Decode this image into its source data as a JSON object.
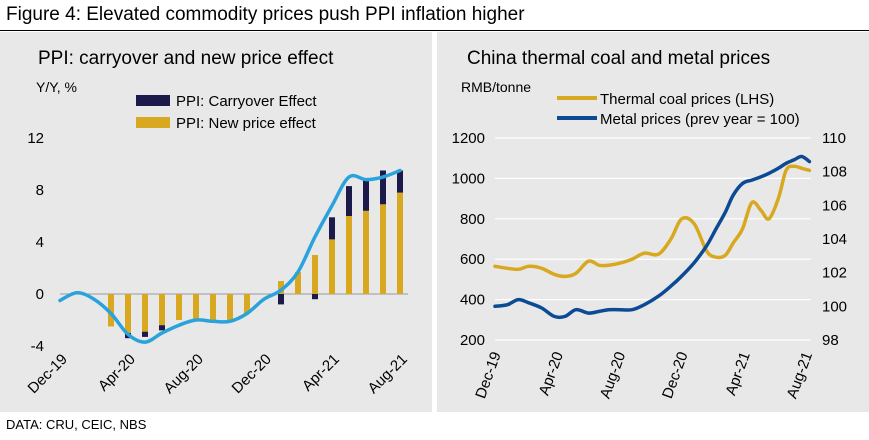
{
  "figure_title": "Figure 4: Elevated commodity prices push PPI inflation higher",
  "source": "DATA: CRU, CEIC, NBS",
  "colors": {
    "panel_bg": "#e8e8e8",
    "carryover": "#1c1a4a",
    "new_price": "#d8a820",
    "ppi_line": "#2aa3dc",
    "coal_line": "#d8a820",
    "metal_line": "#0d4a94"
  },
  "chart_data": [
    {
      "type": "bar",
      "title": "PPI: carryover and new price effect",
      "ylabel": "Y/Y, %",
      "ylim": [
        -4,
        12
      ],
      "yticks": [
        -4,
        0,
        4,
        8,
        12
      ],
      "xtick_labels": [
        "Dec-19",
        "Apr-20",
        "Aug-20",
        "Dec-20",
        "Apr-21",
        "Aug-21"
      ],
      "legend": [
        "PPI: Carryover Effect",
        "PPI: New price effect"
      ],
      "legend_placement": "top",
      "x_months": [
        "Dec-19",
        "Jan-20",
        "Feb-20",
        "Mar-20",
        "Apr-20",
        "May-20",
        "Jun-20",
        "Jul-20",
        "Aug-20",
        "Sep-20",
        "Oct-20",
        "Nov-20",
        "Dec-20",
        "Jan-21",
        "Feb-21",
        "Mar-21",
        "Apr-21",
        "May-21",
        "Jun-21",
        "Jul-21",
        "Aug-21"
      ],
      "series": [
        {
          "name": "PPI: Carryover Effect",
          "kind": "bar",
          "values": [
            0,
            0,
            0,
            0,
            -0.4,
            -0.4,
            -0.4,
            0,
            0,
            0,
            0,
            0,
            0,
            -0.8,
            0,
            -0.4,
            1.7,
            2.3,
            2.5,
            2.6,
            1.7
          ]
        },
        {
          "name": "PPI: New price effect",
          "kind": "bar",
          "values": [
            0,
            0,
            0,
            -2.5,
            -3.0,
            -2.9,
            -2.4,
            -2.0,
            -2.0,
            -2.0,
            -2.0,
            -1.5,
            0,
            1.0,
            1.7,
            3.0,
            4.2,
            6.0,
            6.4,
            6.9,
            7.8
          ]
        },
        {
          "name": "PPI",
          "kind": "line",
          "values": [
            -0.5,
            0.1,
            -0.4,
            -1.5,
            -3.1,
            -3.7,
            -3.0,
            -2.4,
            -2.0,
            -2.1,
            -2.1,
            -1.5,
            -0.4,
            0.3,
            1.7,
            4.4,
            6.8,
            9.0,
            8.8,
            9.0,
            9.5
          ]
        }
      ]
    },
    {
      "type": "line",
      "title": "China thermal coal and metal prices",
      "ylabel": "RMB/tonne",
      "ylim": [
        200,
        1200
      ],
      "yticks": [
        200,
        400,
        600,
        800,
        1000,
        1200
      ],
      "y2lim": [
        98,
        110
      ],
      "y2ticks": [
        98,
        100,
        102,
        104,
        106,
        108,
        110
      ],
      "xtick_labels": [
        "Dec-19",
        "Apr-20",
        "Aug-20",
        "Dec-20",
        "Apr-21",
        "Aug-21"
      ],
      "xlim": [
        0,
        20.3
      ],
      "legend_placement": "top",
      "series": [
        {
          "name": "Thermal coal prices (LHS)",
          "axis": "left",
          "x": [
            0,
            0.8,
            1.5,
            2.2,
            3.0,
            3.8,
            4.5,
            5.2,
            6.0,
            6.7,
            7.3,
            8.0,
            8.8,
            9.6,
            10.5,
            11.3,
            12.0,
            12.8,
            13.6,
            14.2,
            14.8,
            15.3,
            15.9,
            16.5,
            17.1,
            17.6,
            18.2,
            18.7,
            19.2,
            19.7,
            20.2
          ],
          "values": [
            565,
            555,
            550,
            565,
            555,
            525,
            515,
            530,
            590,
            570,
            570,
            580,
            600,
            630,
            625,
            700,
            800,
            775,
            640,
            610,
            620,
            680,
            750,
            880,
            840,
            800,
            900,
            1040,
            1060,
            1050,
            1040
          ]
        },
        {
          "name": "Metal prices (prev year = 100)",
          "axis": "right",
          "x": [
            0,
            0.8,
            1.5,
            2.2,
            3.0,
            3.8,
            4.5,
            5.2,
            6.0,
            6.7,
            7.3,
            8.0,
            8.8,
            9.6,
            10.5,
            11.3,
            12.0,
            12.8,
            13.6,
            14.2,
            14.8,
            15.3,
            15.9,
            16.5,
            17.1,
            17.6,
            18.2,
            18.7,
            19.2,
            19.7,
            20.2
          ],
          "values": [
            100.0,
            100.1,
            100.4,
            100.2,
            99.9,
            99.4,
            99.4,
            99.8,
            99.6,
            99.7,
            99.8,
            99.8,
            99.8,
            100.1,
            100.6,
            101.2,
            101.8,
            102.6,
            103.6,
            104.6,
            105.6,
            106.6,
            107.3,
            107.5,
            107.7,
            107.9,
            108.2,
            108.5,
            108.7,
            108.9,
            108.6
          ]
        }
      ]
    }
  ]
}
